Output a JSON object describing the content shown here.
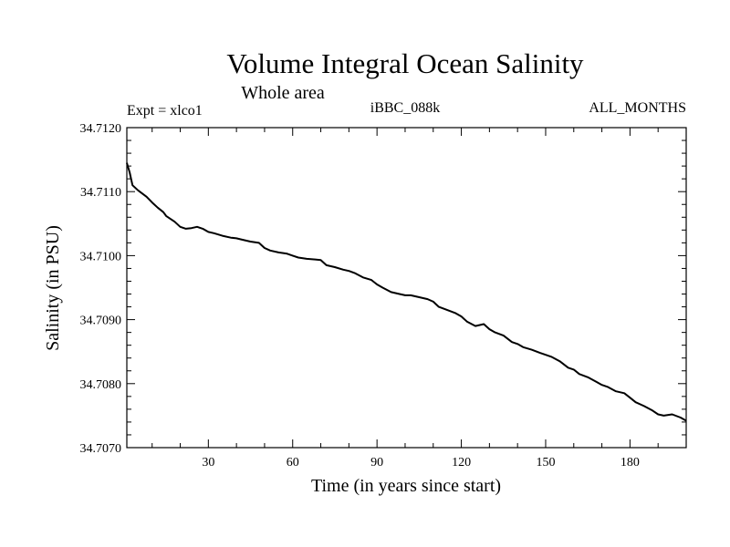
{
  "chart_data": {
    "type": "line",
    "title": "Volume Integral Ocean Salinity",
    "subtitle": "Whole area",
    "annotations": {
      "left": "Expt = xlco1",
      "center": "iBBC_088k",
      "right": "ALL_MONTHS"
    },
    "xlabel": "Time (in years since start)",
    "ylabel": "Salinity (in PSU)",
    "xlim": [
      1,
      200
    ],
    "ylim": [
      34.707,
      34.712
    ],
    "x_ticks": [
      30,
      60,
      90,
      120,
      150,
      180
    ],
    "x_tick_labels": [
      "30",
      "60",
      "90",
      "120",
      "150",
      "180"
    ],
    "y_ticks": [
      34.707,
      34.708,
      34.709,
      34.71,
      34.711,
      34.712
    ],
    "y_tick_labels": [
      "34.7070",
      "34.7080",
      "34.7090",
      "34.7100",
      "34.7110",
      "34.7120"
    ],
    "grid": false,
    "series": [
      {
        "name": "Salinity",
        "color": "#000000",
        "x": [
          1,
          2,
          3,
          5,
          8,
          10,
          12,
          14,
          15,
          18,
          20,
          22,
          24,
          26,
          28,
          30,
          32,
          35,
          38,
          40,
          42,
          45,
          48,
          50,
          52,
          55,
          58,
          60,
          62,
          65,
          68,
          70,
          72,
          75,
          78,
          80,
          82,
          85,
          88,
          90,
          92,
          95,
          98,
          100,
          102,
          105,
          108,
          110,
          112,
          115,
          118,
          120,
          122,
          125,
          128,
          130,
          132,
          135,
          138,
          140,
          142,
          145,
          148,
          150,
          152,
          155,
          158,
          160,
          162,
          165,
          168,
          170,
          172,
          175,
          178,
          180,
          182,
          185,
          188,
          190,
          192,
          195,
          198,
          200
        ],
        "values": [
          34.71145,
          34.7113,
          34.7111,
          34.71102,
          34.71092,
          34.71083,
          34.71075,
          34.71068,
          34.71062,
          34.71053,
          34.71045,
          34.71042,
          34.71043,
          34.71045,
          34.71042,
          34.71037,
          34.71035,
          34.71031,
          34.71028,
          34.71027,
          34.71025,
          34.71022,
          34.7102,
          34.71012,
          34.71008,
          34.71005,
          34.71003,
          34.71,
          34.70997,
          34.70995,
          34.70994,
          34.70993,
          34.70985,
          34.70982,
          34.70978,
          34.70976,
          34.70973,
          34.70966,
          34.70962,
          34.70955,
          34.7095,
          34.70943,
          34.7094,
          34.70938,
          34.70938,
          34.70935,
          34.70932,
          34.70928,
          34.7092,
          34.70915,
          34.7091,
          34.70905,
          34.70897,
          34.7089,
          34.70893,
          34.70885,
          34.7088,
          34.70875,
          34.70865,
          34.70862,
          34.70857,
          34.70853,
          34.70848,
          34.70845,
          34.70842,
          34.70835,
          34.70825,
          34.70822,
          34.70815,
          34.7081,
          34.70803,
          34.70798,
          34.70795,
          34.70788,
          34.70785,
          34.70778,
          34.70771,
          34.70765,
          34.70758,
          34.70752,
          34.7075,
          34.70752,
          34.70747,
          34.70742
        ]
      }
    ]
  }
}
